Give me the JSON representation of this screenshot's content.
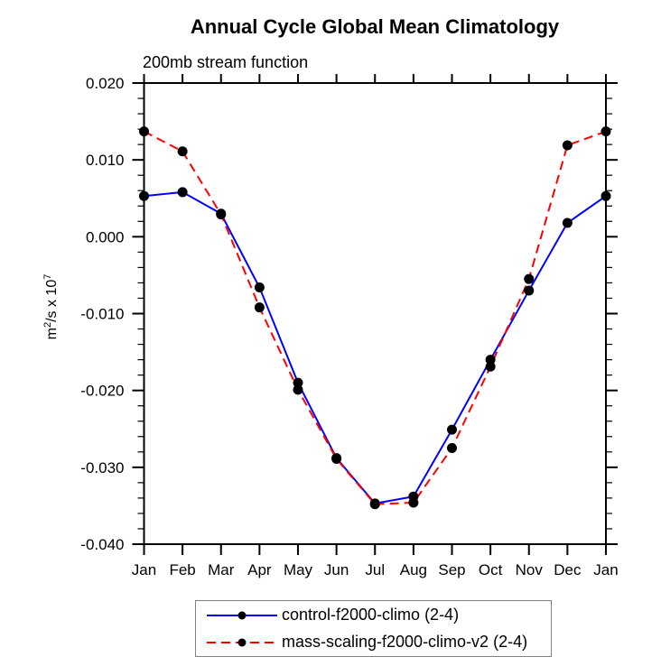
{
  "chart_data": {
    "type": "line",
    "title": "Annual Cycle Global Mean Climatology",
    "subtitle": "200mb stream function",
    "ylabel_text": "m2/s x 107",
    "ylabel_parts": {
      "base1": "m",
      "sup1": "2",
      "base2": "/s x 10",
      "sup2": "7"
    },
    "categories": [
      "Jan",
      "Feb",
      "Mar",
      "Apr",
      "May",
      "Jun",
      "Jul",
      "Aug",
      "Sep",
      "Oct",
      "Nov",
      "Dec",
      "Jan"
    ],
    "series": [
      {
        "name": "control-f2000-climo (2-4)",
        "color": "#0000ff",
        "line_style": "solid",
        "marker": "black-dot",
        "values": [
          0.0053,
          0.0058,
          0.003,
          -0.0066,
          -0.019,
          -0.0288,
          -0.0347,
          -0.0338,
          -0.0251,
          -0.016,
          -0.007,
          0.0018,
          0.0053
        ]
      },
      {
        "name": "mass-scaling-f2000-climo-v2 (2-4)",
        "color": "#ff0000",
        "line_style": "dashed",
        "marker": "black-dot",
        "values": [
          0.0137,
          0.0111,
          0.0029,
          -0.0092,
          -0.0199,
          -0.0289,
          -0.0348,
          -0.0346,
          -0.0275,
          -0.0169,
          -0.0055,
          0.0119,
          0.0137
        ]
      }
    ],
    "ylim": [
      -0.04,
      0.02
    ],
    "y_major_ticks": [
      0.02,
      0.01,
      0.0,
      -0.01,
      -0.02,
      -0.03,
      -0.04
    ],
    "y_tick_labels": [
      "0.020",
      "0.010",
      "0.000",
      "-0.010",
      "-0.020",
      "-0.030",
      "-0.040"
    ],
    "y_minor_step": 0.002,
    "grid": false,
    "legend_position": "bottom-center",
    "marker_color": "#000000",
    "axis_color": "#000000"
  }
}
